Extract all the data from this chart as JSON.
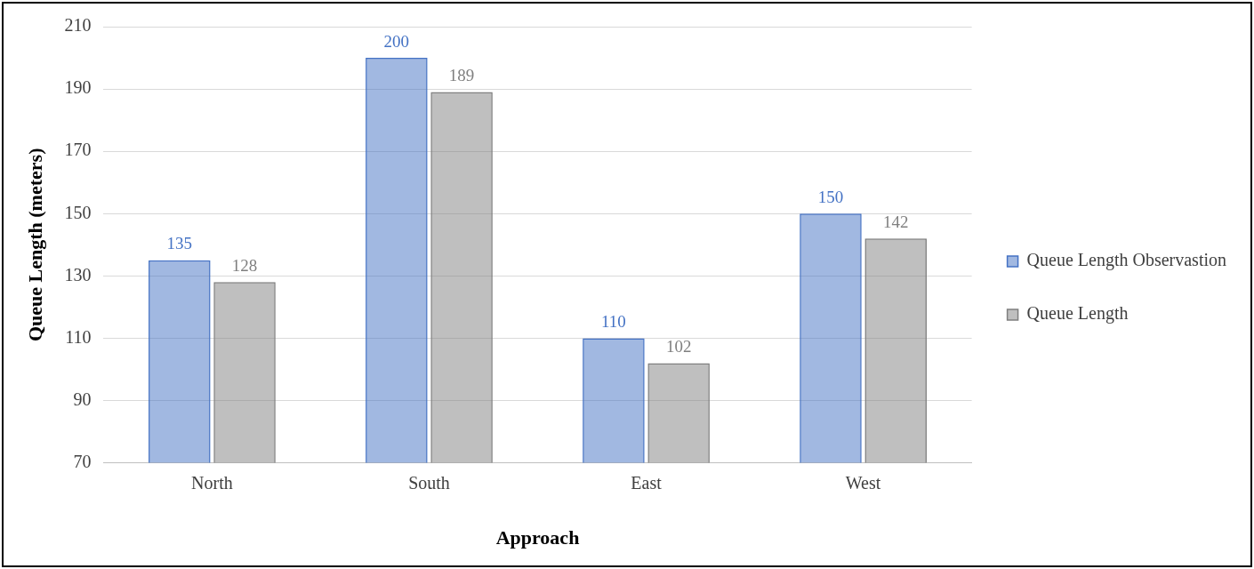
{
  "chart_data": {
    "type": "bar",
    "xlabel": "Approach",
    "ylabel": "Queue Length (meters)",
    "categories": [
      "North",
      "South",
      "East",
      "West"
    ],
    "series": [
      {
        "name": "Queue Length Observastion",
        "color": "#4472c4",
        "values": [
          135,
          200,
          110,
          150
        ]
      },
      {
        "name": "Queue Length",
        "color": "#7f7f7f",
        "values": [
          128,
          189,
          102,
          142
        ]
      }
    ],
    "ylim": [
      70,
      210
    ],
    "yticks": [
      70,
      90,
      110,
      130,
      150,
      170,
      190,
      210
    ],
    "grid": "y",
    "legend": "right",
    "data_labels": true
  }
}
